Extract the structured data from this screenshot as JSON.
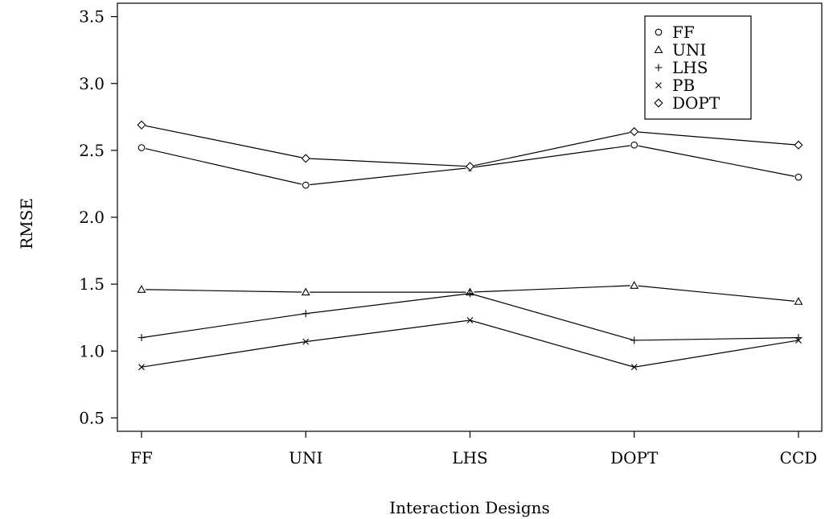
{
  "chart_data": {
    "type": "line",
    "title": "",
    "xlabel": "Interaction Designs",
    "ylabel": "RMSE",
    "categories": [
      "FF",
      "UNI",
      "LHS",
      "DOPT",
      "CCD"
    ],
    "ylim": [
      0.4,
      3.6
    ],
    "yticks": [
      "0.5",
      "1.0",
      "1.5",
      "2.0",
      "2.5",
      "3.0",
      "3.5"
    ],
    "grid": false,
    "legend_position": "top-right",
    "series": [
      {
        "name": "FF",
        "marker": "circle",
        "values": [
          2.52,
          2.24,
          2.37,
          2.54,
          2.3
        ]
      },
      {
        "name": "UNI",
        "marker": "triangle",
        "values": [
          1.46,
          1.44,
          1.44,
          1.49,
          1.37
        ]
      },
      {
        "name": "LHS",
        "marker": "plus",
        "values": [
          1.1,
          1.28,
          1.43,
          1.08,
          1.1
        ]
      },
      {
        "name": "PB",
        "marker": "cross",
        "values": [
          0.88,
          1.07,
          1.23,
          0.88,
          1.08
        ]
      },
      {
        "name": "DOPT",
        "marker": "diamond",
        "values": [
          2.69,
          2.44,
          2.38,
          2.64,
          2.54
        ]
      }
    ]
  }
}
